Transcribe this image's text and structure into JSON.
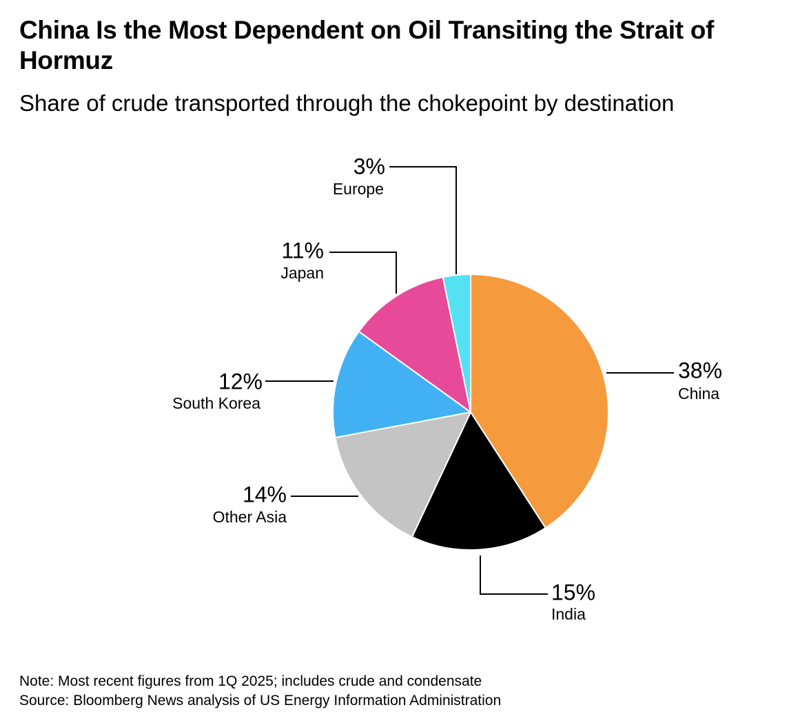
{
  "title": "China Is the Most Dependent on Oil Transiting the Strait of Hormuz",
  "subtitle": "Share of crude transported through the chokepoint by destination",
  "chart_data": {
    "type": "pie",
    "title": "China Is the Most Dependent on Oil Transiting the Strait of Hormuz",
    "subtitle": "Share of crude transported through the chokepoint by destination",
    "unit": "%",
    "slices": [
      {
        "label": "China",
        "value": 38,
        "display": "38%",
        "color": "#f59b3e"
      },
      {
        "label": "India",
        "value": 15,
        "display": "15%",
        "color": "#000000"
      },
      {
        "label": "Other Asia",
        "value": 14,
        "display": "14%",
        "color": "#c4c4c4"
      },
      {
        "label": "South Korea",
        "value": 12,
        "display": "12%",
        "color": "#42b1f4"
      },
      {
        "label": "Japan",
        "value": 11,
        "display": "11%",
        "color": "#e84a9a"
      },
      {
        "label": "Europe",
        "value": 3,
        "display": "3%",
        "color": "#54e1f2"
      }
    ]
  },
  "footer": {
    "note": "Note: Most recent figures from 1Q 2025; includes crude and condensate",
    "source": "Source: Bloomberg News analysis of US Energy Information Administration"
  }
}
